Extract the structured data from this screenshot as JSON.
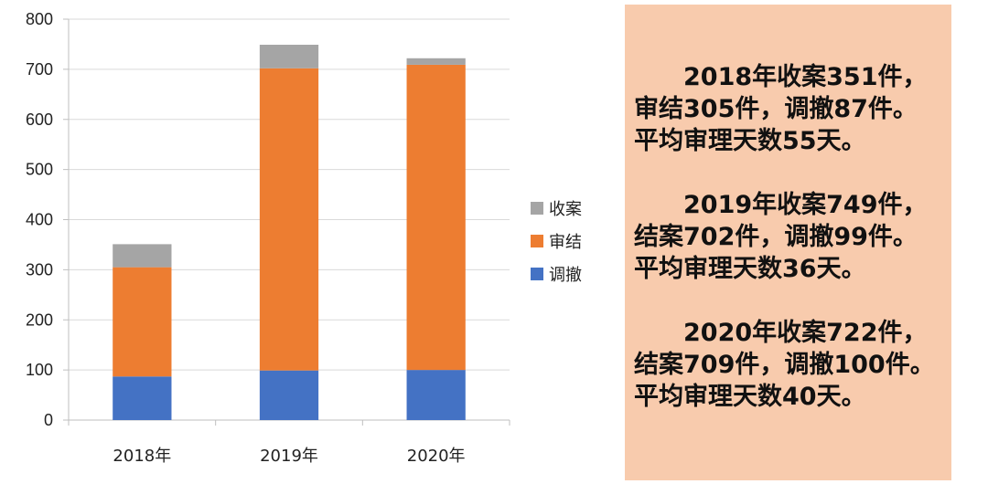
{
  "chart_data": {
    "type": "bar",
    "stacked": true,
    "categories": [
      "2018年",
      "2019年",
      "2020年"
    ],
    "series": [
      {
        "name": "调撤",
        "values": [
          87,
          99,
          100
        ],
        "color": "#4472c4"
      },
      {
        "name": "审结",
        "values": [
          218,
          603,
          609
        ],
        "color": "#ed7d31"
      },
      {
        "name": "收案",
        "values": [
          46,
          47,
          13
        ],
        "color": "#a5a5a5"
      }
    ],
    "yticks": [
      0,
      100,
      200,
      300,
      400,
      500,
      600,
      700,
      800
    ],
    "ylim": [
      0,
      800
    ],
    "grid": true,
    "legend_position": "right",
    "legend_order": [
      "收案",
      "审结",
      "调撤"
    ]
  },
  "notes": [
    {
      "lines": [
        "2018年收案351件，",
        "审结305件，调撤87件。",
        "平均审理天数55天。"
      ]
    },
    {
      "lines": [
        "2019年收案749件，",
        "结案702件，调撤99件。",
        "平均审理天数36天。"
      ]
    },
    {
      "lines": [
        "2020年收案722件，",
        "结案709件，调撤100件。",
        "平均审理天数40天。"
      ]
    }
  ]
}
